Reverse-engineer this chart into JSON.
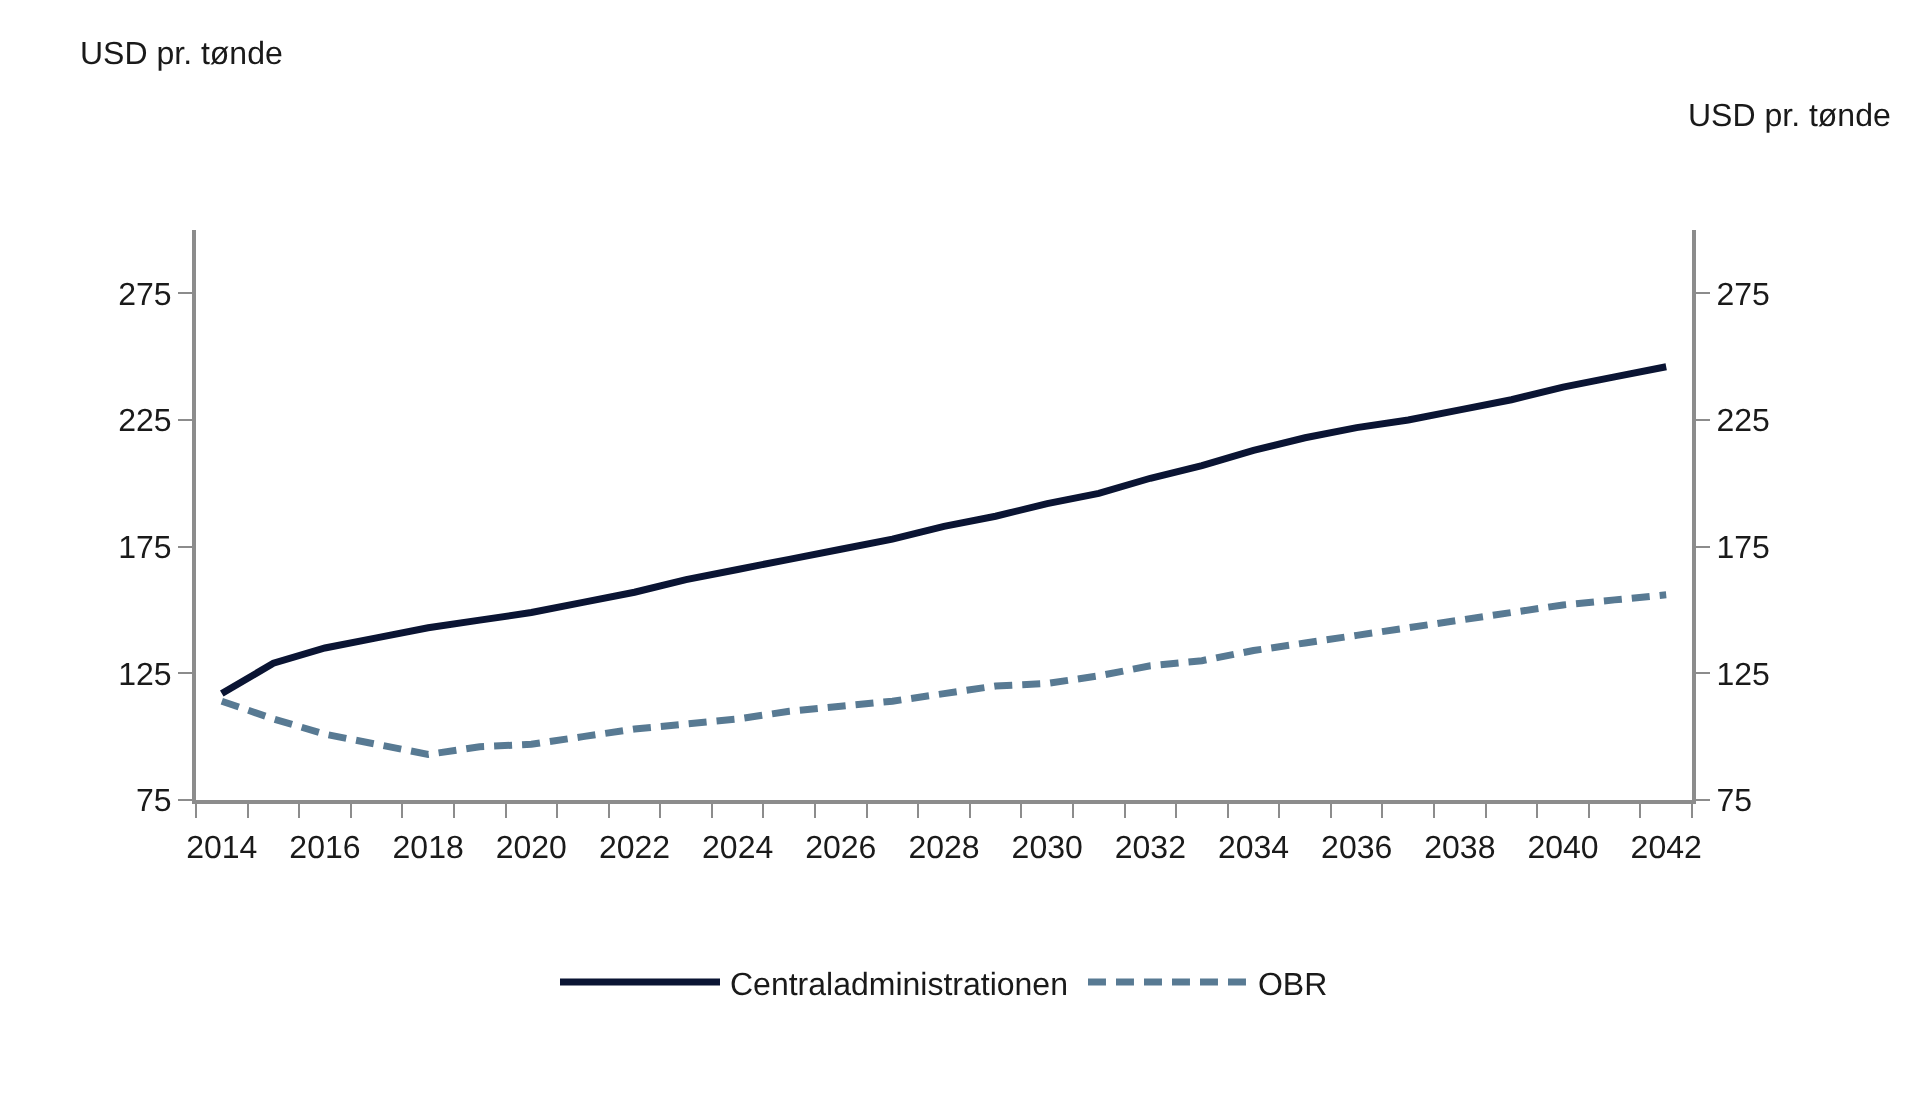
{
  "chart_data": {
    "type": "line",
    "ylabel": "USD pr. tønde",
    "y2label": "USD pr. tønde",
    "x": [
      2014,
      2015,
      2016,
      2017,
      2018,
      2019,
      2020,
      2021,
      2022,
      2023,
      2024,
      2025,
      2026,
      2027,
      2028,
      2029,
      2030,
      2031,
      2032,
      2033,
      2034,
      2035,
      2036,
      2037,
      2038,
      2039,
      2040,
      2041,
      2042
    ],
    "series": [
      {
        "name": "Centraladministrationen",
        "color": "#0a1433",
        "line_style": "solid",
        "values": [
          117,
          129,
          135,
          139,
          143,
          146,
          149,
          153,
          157,
          162,
          166,
          170,
          174,
          178,
          183,
          187,
          192,
          196,
          202,
          207,
          213,
          218,
          222,
          225,
          229,
          233,
          238,
          242,
          246
        ]
      },
      {
        "name": "OBR",
        "color": "#587a93",
        "line_style": "dashed",
        "values": [
          114,
          107,
          101,
          97,
          93,
          96,
          97,
          100,
          103,
          105,
          107,
          110,
          112,
          114,
          117,
          120,
          121,
          124,
          128,
          130,
          134,
          137,
          140,
          143,
          146,
          149,
          152,
          154,
          156
        ]
      }
    ],
    "xlim": [
      2013.5,
      2042.5
    ],
    "xticks": [
      2014,
      2016,
      2018,
      2020,
      2022,
      2024,
      2026,
      2028,
      2030,
      2032,
      2034,
      2036,
      2038,
      2040,
      2042
    ],
    "ylim": [
      75,
      300
    ],
    "yticks": [
      75,
      125,
      175,
      225,
      275
    ],
    "y2lim": [
      75,
      300
    ],
    "y2ticks": [
      75,
      125,
      175,
      225,
      275
    ],
    "legend": "bottom",
    "marker": "none"
  }
}
